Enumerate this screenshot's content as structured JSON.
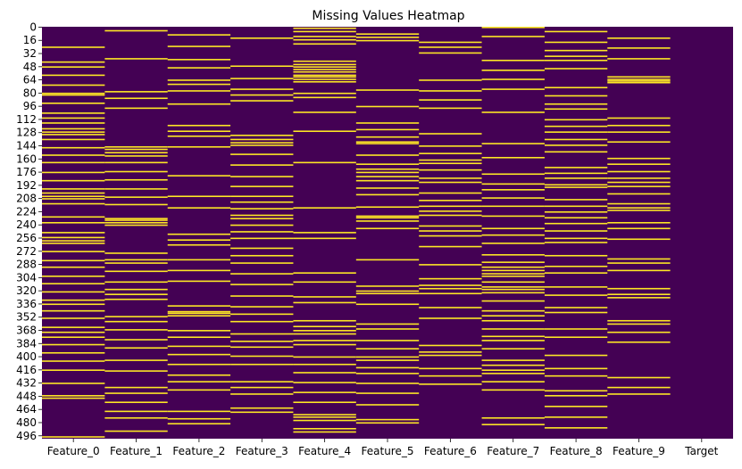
{
  "chart_data": {
    "type": "heatmap",
    "title": "Missing Values Heatmap",
    "xlabel": "",
    "ylabel": "",
    "columns": [
      "Feature_0",
      "Feature_1",
      "Feature_2",
      "Feature_3",
      "Feature_4",
      "Feature_5",
      "Feature_6",
      "Feature_7",
      "Feature_8",
      "Feature_9",
      "Target"
    ],
    "n_rows": 500,
    "row_tick_labels": [
      0,
      16,
      32,
      48,
      64,
      80,
      96,
      112,
      128,
      144,
      160,
      176,
      192,
      208,
      224,
      240,
      256,
      272,
      288,
      304,
      320,
      336,
      352,
      368,
      384,
      400,
      416,
      432,
      448,
      464,
      480,
      496
    ],
    "value_meaning": {
      "0": "present",
      "1": "missing"
    },
    "colors": {
      "present": "#440154",
      "missing": "#fde725"
    },
    "colorbar": false,
    "missing_rows": {
      "Feature_0": [
        24,
        42,
        48,
        58,
        70,
        80,
        82,
        92,
        104,
        110,
        116,
        123,
        127,
        130,
        136,
        146,
        155,
        164,
        176,
        186,
        196,
        201,
        205,
        208,
        214,
        230,
        237,
        249,
        255,
        259,
        262,
        272,
        283,
        291,
        302,
        311,
        321,
        331,
        336,
        344,
        353,
        364,
        370,
        376,
        385,
        395,
        405,
        416,
        432,
        447,
        450,
        497
      ],
      "Feature_1": [
        4,
        38,
        78,
        86,
        98,
        145,
        148,
        152,
        156,
        164,
        175,
        185,
        196,
        206,
        215,
        232,
        234,
        237,
        240,
        274,
        282,
        286,
        296,
        309,
        318,
        324,
        330,
        351,
        357,
        367,
        379,
        389,
        404,
        417,
        437,
        444,
        455,
        466,
        474,
        490
      ],
      "Feature_2": [
        9,
        23,
        39,
        49,
        64,
        69,
        77,
        93,
        119,
        126,
        132,
        145,
        180,
        205,
        219,
        251,
        258,
        264,
        282,
        295,
        308,
        338,
        345,
        347,
        350,
        368,
        376,
        387,
        397,
        409,
        422,
        430,
        440,
        466,
        475,
        481
      ],
      "Feature_3": [
        13,
        47,
        62,
        75,
        82,
        89,
        131,
        136,
        140,
        143,
        154,
        167,
        181,
        193,
        205,
        212,
        220,
        228,
        232,
        240,
        248,
        256,
        268,
        277,
        286,
        299,
        312,
        326,
        339,
        348,
        357,
        372,
        381,
        388,
        399,
        409,
        430,
        437,
        445,
        462,
        467
      ],
      "Feature_4": [
        1,
        5,
        11,
        15,
        20,
        41,
        45,
        48,
        51,
        54,
        58,
        60,
        63,
        66,
        80,
        85,
        103,
        126,
        164,
        219,
        249,
        256,
        298,
        309,
        327,
        334,
        356,
        363,
        368,
        372,
        380,
        385,
        400,
        409,
        419,
        431,
        443,
        455,
        470,
        473,
        477,
        487,
        491
      ],
      "Feature_5": [
        8,
        12,
        16,
        76,
        96,
        116,
        124,
        133,
        139,
        141,
        155,
        166,
        172,
        176,
        181,
        186,
        195,
        203,
        218,
        229,
        231,
        235,
        244,
        282,
        314,
        320,
        323,
        336,
        360,
        366,
        380,
        390,
        400,
        404,
        413,
        420,
        432,
        444,
        458,
        476,
        480
      ],
      "Feature_6": [
        18,
        24,
        31,
        64,
        77,
        88,
        98,
        129,
        144,
        153,
        161,
        165,
        173,
        183,
        188,
        201,
        210,
        217,
        223,
        228,
        241,
        247,
        253,
        266,
        288,
        305,
        313,
        317,
        323,
        340,
        353,
        386,
        394,
        398,
        414,
        423,
        433
      ],
      "Feature_7": [
        0,
        11,
        40,
        52,
        63,
        75,
        103,
        141,
        158,
        178,
        190,
        197,
        207,
        217,
        229,
        244,
        252,
        262,
        276,
        285,
        291,
        295,
        299,
        302,
        309,
        315,
        318,
        322,
        332,
        344,
        350,
        356,
        366,
        375,
        380,
        390,
        404,
        410,
        416,
        420,
        430,
        440,
        474,
        482
      ],
      "Feature_8": [
        5,
        18,
        28,
        35,
        40,
        50,
        73,
        83,
        93,
        99,
        112,
        120,
        127,
        136,
        143,
        151,
        170,
        177,
        183,
        191,
        194,
        209,
        217,
        224,
        231,
        238,
        247,
        256,
        261,
        277,
        290,
        298,
        315,
        325,
        340,
        346,
        366,
        376,
        398,
        414,
        423,
        441,
        447,
        460,
        473,
        486
      ],
      "Feature_9": [
        13,
        25,
        38,
        60,
        63,
        65,
        67,
        110,
        119,
        127,
        139,
        159,
        166,
        175,
        183,
        188,
        193,
        202,
        214,
        219,
        222,
        237,
        244,
        257,
        281,
        286,
        295,
        317,
        324,
        328,
        356,
        360,
        370,
        382,
        425,
        437,
        445
      ]
    }
  }
}
